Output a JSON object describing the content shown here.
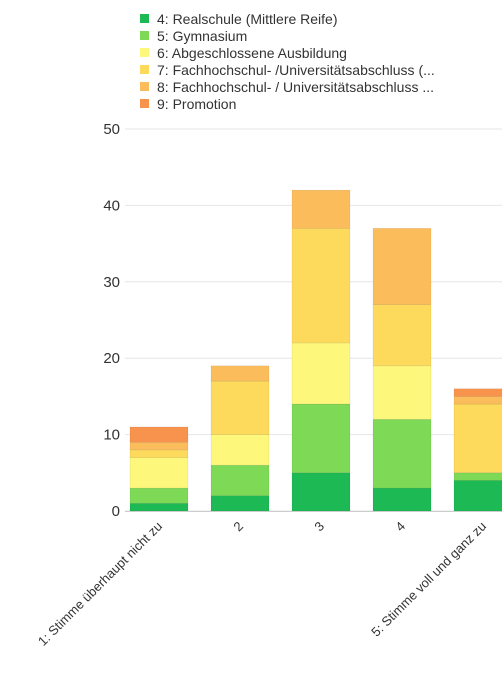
{
  "chart_data": {
    "type": "bar",
    "stacked": true,
    "categories": [
      "1: Stimme überhaupt nicht zu",
      "2",
      "3",
      "4",
      "5: Stimme voll und ganz zu"
    ],
    "ylim": [
      0,
      50
    ],
    "yticks": [
      0,
      10,
      20,
      30,
      40,
      50
    ],
    "grid": true,
    "legend_position": "top",
    "series": [
      {
        "name": "4: Realschule (Mittlere Reife)",
        "color": "#1db954",
        "values": [
          1,
          2,
          5,
          3,
          4
        ]
      },
      {
        "name": "5: Gymnasium",
        "color": "#7ed957",
        "values": [
          2,
          4,
          9,
          9,
          1
        ]
      },
      {
        "name": "6: Abgeschlossene Ausbildung",
        "color": "#fdf77c",
        "values": [
          4,
          4,
          8,
          7,
          0
        ]
      },
      {
        "name": "7: Fachhochschul- /Universitätsabschluss (...",
        "color": "#fdd95c",
        "values": [
          1,
          7,
          15,
          8,
          9
        ]
      },
      {
        "name": "8: Fachhochschul- / Universitätsabschluss ...",
        "color": "#fbbd5c",
        "values": [
          1,
          2,
          5,
          10,
          1
        ]
      },
      {
        "name": "9: Promotion",
        "color": "#f8934e",
        "values": [
          2,
          0,
          0,
          0,
          1
        ]
      }
    ]
  }
}
